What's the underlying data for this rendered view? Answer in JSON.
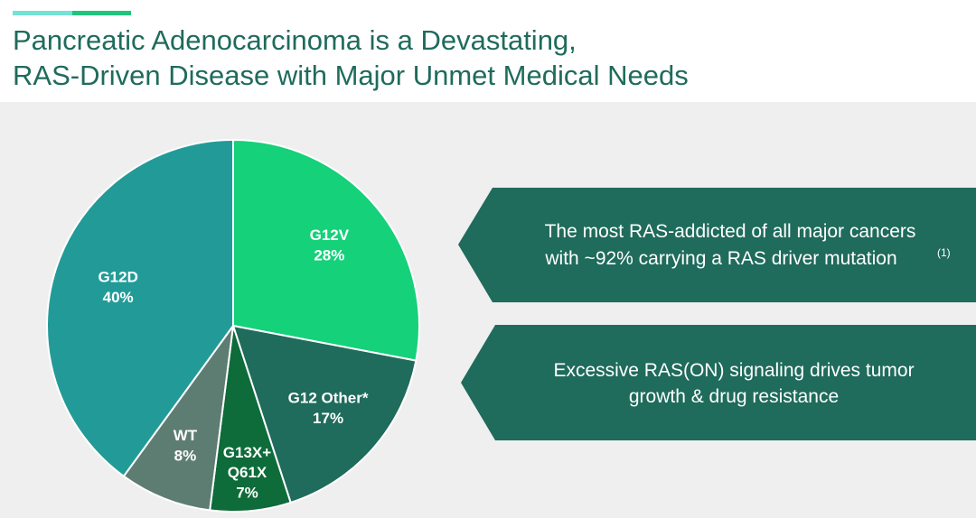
{
  "title": [
    "Pancreatic Adenocarcinoma is a Devastating,",
    "RAS-Driven Disease with Major Unmet Medical Needs"
  ],
  "chart_data": {
    "type": "pie",
    "categories": [
      "G12V",
      "G12 Other*",
      "G13X+\nQ61X",
      "WT",
      "G12D"
    ],
    "values": [
      28,
      17,
      7,
      8,
      40
    ],
    "value_labels": [
      "28%",
      "17%",
      "7%",
      "8%",
      "40%"
    ],
    "colors": [
      "#14d17a",
      "#1f6b5c",
      "#0e6b3a",
      "#5e7d72",
      "#229b98"
    ]
  },
  "callouts": [
    {
      "lines": [
        "The most RAS-addicted of all major cancers",
        "with ~92% carrying a RAS driver mutation"
      ],
      "note": "(1)"
    },
    {
      "lines": [
        "Excessive RAS(ON) signaling drives tumor",
        "growth & drug resistance"
      ]
    }
  ]
}
